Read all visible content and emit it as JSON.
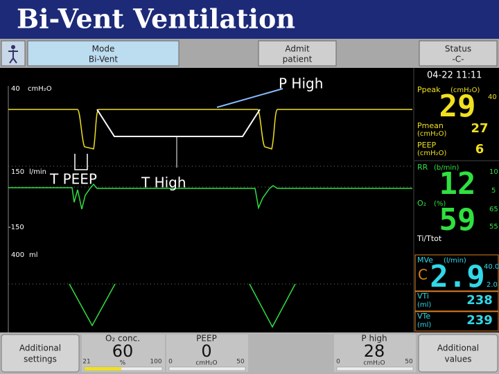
{
  "header": {
    "title": "Bi-Vent Ventilation"
  },
  "toolbar": {
    "mode": [
      "Mode",
      "Bi-Vent"
    ],
    "admit": [
      "Admit",
      "patient"
    ],
    "status": [
      "Status",
      "-C-"
    ]
  },
  "annotations": {
    "p_high": "P High",
    "t_peep": "T PEEP",
    "t_high": "T High"
  },
  "waveforms": {
    "pressure": {
      "max": "40",
      "unit": "cmH₂O"
    },
    "flow": {
      "max": "150",
      "unit": "l/min",
      "min": "-150"
    },
    "volume": {
      "max": "400",
      "unit": "ml"
    }
  },
  "monitor": {
    "datetime": "04-22  11:11",
    "ppeak": {
      "label": "Ppeak",
      "unit": "(cmH₂O)",
      "limit": "40",
      "value": "29"
    },
    "pmean": {
      "label": "Pmean",
      "unit": "(cmH₂O)",
      "value": "27"
    },
    "peep": {
      "label": "PEEP",
      "unit": "(cmH₂O)",
      "value": "6"
    },
    "rr": {
      "label": "RR",
      "unit": "(b/min)",
      "upper": "10",
      "value": "12",
      "lower": "5"
    },
    "o2": {
      "label": "O₂",
      "unit": "(%)",
      "upper": "65",
      "value": "59",
      "lower": "55"
    },
    "ti_ttot": "Ti/Ttot",
    "mve": {
      "label": "MVe",
      "unit": "(l/min)",
      "upper": "40.0",
      "flag": "C",
      "value": "2.9",
      "lower": "2.0"
    },
    "vti": {
      "label": "VTi",
      "unit": "(ml)",
      "value": "238"
    },
    "vte": {
      "label": "VTe",
      "unit": "(ml)",
      "value": "239"
    }
  },
  "footer": {
    "additional_settings": [
      "Additional",
      "settings"
    ],
    "o2_conc": {
      "label": "O₂ conc.",
      "value": "60",
      "unit": "%",
      "min": "21",
      "max": "100"
    },
    "peep": {
      "label": "PEEP",
      "value": "0",
      "unit": "cmH₂O",
      "min": "0",
      "max": "50"
    },
    "p_high": {
      "label": "P high",
      "value": "28",
      "unit": "cmH₂O",
      "min": "0",
      "max": "50"
    },
    "additional_values": [
      "Additional",
      "values"
    ]
  }
}
